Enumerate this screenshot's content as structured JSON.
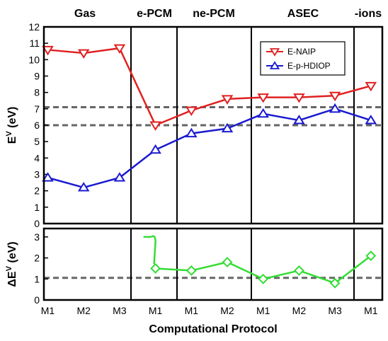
{
  "chart_data": {
    "type": "line",
    "xlabel": "Computational Protocol",
    "sections": [
      "Gas",
      "e-PCM",
      "ne-PCM",
      "ASEC",
      "-ions"
    ],
    "categories": [
      "M1",
      "M2",
      "M3",
      "M1",
      "M1",
      "M2",
      "M1",
      "M2",
      "M3",
      "M1"
    ],
    "panels": [
      {
        "ylabel_main": "E",
        "ylabel_sup": "V",
        "ylabel_tail": " (eV)",
        "ylim": [
          0,
          12
        ],
        "yticks": [
          "0",
          "1",
          "2",
          "3",
          "4",
          "5",
          "6",
          "7",
          "8",
          "9",
          "10",
          "11",
          "12"
        ],
        "reference_lines": [
          6.0,
          7.1
        ],
        "legend_position": "top-right",
        "series": [
          {
            "name": "E-NAIP",
            "color": "#e02020",
            "marker": "triangle-down",
            "values": [
              10.6,
              10.4,
              10.7,
              6.0,
              6.9,
              7.6,
              7.7,
              7.7,
              7.8,
              8.4
            ]
          },
          {
            "name": "E-p-HDIOP",
            "color": "#1a1ad0",
            "marker": "triangle-up",
            "values": [
              2.8,
              2.2,
              2.8,
              4.5,
              5.5,
              5.8,
              6.7,
              6.3,
              7.0,
              6.3
            ]
          }
        ]
      },
      {
        "ylabel_main": "ΔE",
        "ylabel_sup": "V",
        "ylabel_tail": " (eV)",
        "ylim": [
          0,
          3.4
        ],
        "yticks": [
          "0",
          "1",
          "2",
          "3"
        ],
        "reference_lines": [
          1.05
        ],
        "series": [
          {
            "name": "",
            "color": "#33dd33",
            "marker": "diamond",
            "values": [
              null,
              null,
              null,
              1.5,
              1.4,
              1.8,
              1.0,
              1.4,
              0.8,
              2.1
            ]
          }
        ]
      }
    ]
  }
}
